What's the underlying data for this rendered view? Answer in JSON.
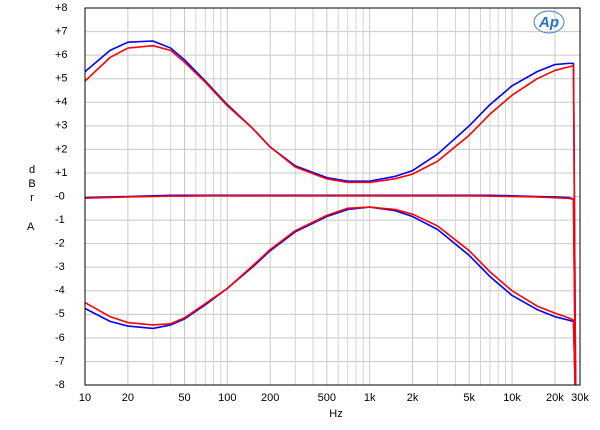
{
  "chart_data": {
    "type": "line",
    "xlabel": "Hz",
    "ylabel": "dBr",
    "ylabel_unit": "A",
    "logo": "Ap",
    "x": [
      10,
      15,
      20,
      30,
      40,
      50,
      70,
      100,
      150,
      200,
      300,
      500,
      700,
      1000,
      1500,
      2000,
      3000,
      5000,
      7000,
      10000,
      15000,
      20000,
      25000,
      27000,
      28000
    ],
    "xlim": [
      10,
      30000
    ],
    "xscale": "log",
    "xticks": [
      10,
      20,
      50,
      100,
      200,
      500,
      {
        "value": 1000,
        "label": "1k"
      },
      {
        "value": 2000,
        "label": "2k"
      },
      {
        "value": 5000,
        "label": "5k"
      },
      {
        "value": 10000,
        "label": "10k"
      },
      {
        "value": 20000,
        "label": "20k"
      },
      {
        "value": 30000,
        "label": "30k"
      }
    ],
    "xminor": [
      30,
      40,
      60,
      70,
      80,
      90,
      300,
      400,
      600,
      700,
      800,
      900,
      3000,
      4000,
      6000,
      7000,
      8000,
      9000
    ],
    "ylim": [
      -8,
      8
    ],
    "yticks": [
      {
        "value": -8,
        "label": "-8"
      },
      {
        "value": -7,
        "label": "-7"
      },
      {
        "value": -6,
        "label": "-6"
      },
      {
        "value": -5,
        "label": "-5"
      },
      {
        "value": -4,
        "label": "-4"
      },
      {
        "value": -3,
        "label": "-3"
      },
      {
        "value": -2,
        "label": "-2"
      },
      {
        "value": -1,
        "label": "-1"
      },
      {
        "value": 0,
        "label": "-0"
      },
      {
        "value": 1,
        "label": "+1"
      },
      {
        "value": 2,
        "label": "+2"
      },
      {
        "value": 3,
        "label": "+3"
      },
      {
        "value": 4,
        "label": "+4"
      },
      {
        "value": 5,
        "label": "+5"
      },
      {
        "value": 6,
        "label": "+6"
      },
      {
        "value": 7,
        "label": "+7"
      },
      {
        "value": 8,
        "label": "+8"
      }
    ],
    "grid": true,
    "series": [
      {
        "color": "#0000ff",
        "values": [
          5.3,
          6.2,
          6.55,
          6.6,
          6.3,
          5.8,
          4.9,
          3.9,
          2.9,
          2.1,
          1.3,
          0.8,
          0.65,
          0.65,
          0.85,
          1.1,
          1.8,
          3.0,
          3.9,
          4.7,
          5.3,
          5.6,
          5.65,
          5.65,
          -9
        ]
      },
      {
        "color": "#0000ff",
        "values": [
          -0.05,
          -0.02,
          0,
          0.03,
          0.05,
          0.05,
          0.05,
          0.05,
          0.05,
          0.05,
          0.05,
          0.05,
          0.05,
          0.05,
          0.05,
          0.05,
          0.05,
          0.05,
          0.05,
          0.03,
          0,
          -0.02,
          -0.05,
          -0.1,
          -9
        ]
      },
      {
        "color": "#0000ff",
        "values": [
          -4.75,
          -5.3,
          -5.5,
          -5.6,
          -5.45,
          -5.2,
          -4.6,
          -3.9,
          -3.0,
          -2.3,
          -1.5,
          -0.85,
          -0.55,
          -0.45,
          -0.6,
          -0.85,
          -1.4,
          -2.5,
          -3.4,
          -4.2,
          -4.8,
          -5.1,
          -5.25,
          -5.3,
          -9
        ]
      },
      {
        "color": "#ff0000",
        "values": [
          4.9,
          5.9,
          6.3,
          6.4,
          6.2,
          5.7,
          4.85,
          3.85,
          2.9,
          2.1,
          1.25,
          0.75,
          0.6,
          0.6,
          0.75,
          0.95,
          1.5,
          2.6,
          3.5,
          4.3,
          5.0,
          5.35,
          5.5,
          5.55,
          -9
        ]
      },
      {
        "color": "#ff0000",
        "values": [
          -0.07,
          -0.04,
          -0.02,
          0,
          0.02,
          0.02,
          0.03,
          0.03,
          0.03,
          0.03,
          0.03,
          0.03,
          0.03,
          0.03,
          0.03,
          0.03,
          0.03,
          0.03,
          0.02,
          0,
          -0.02,
          -0.05,
          -0.08,
          -0.12,
          -9
        ]
      },
      {
        "color": "#ff0000",
        "values": [
          -4.5,
          -5.1,
          -5.35,
          -5.45,
          -5.4,
          -5.15,
          -4.55,
          -3.9,
          -2.95,
          -2.25,
          -1.45,
          -0.8,
          -0.5,
          -0.45,
          -0.55,
          -0.75,
          -1.25,
          -2.3,
          -3.2,
          -4.0,
          -4.65,
          -4.95,
          -5.15,
          -5.25,
          -9
        ]
      }
    ]
  }
}
